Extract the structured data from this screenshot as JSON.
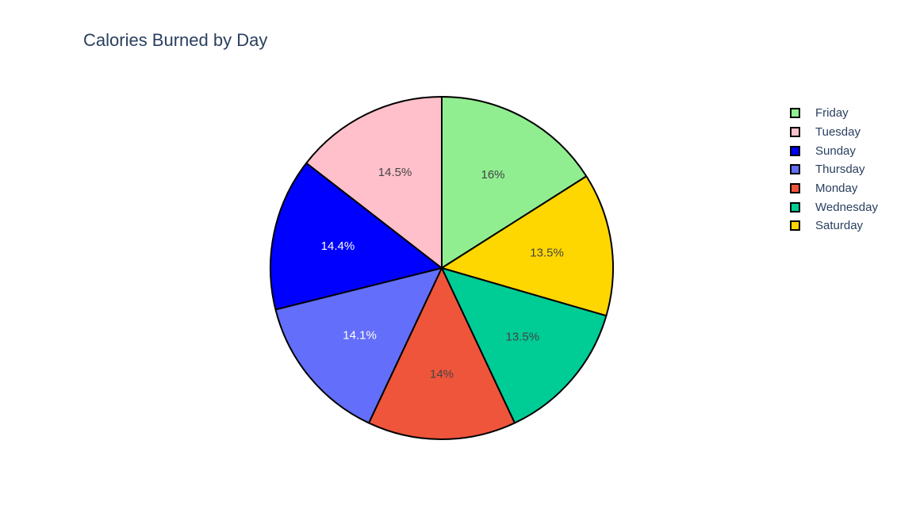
{
  "chart_data": {
    "type": "pie",
    "title": "Calories Burned by Day",
    "slice_border_color": "#000000",
    "slices": [
      {
        "label": "Friday",
        "value": 16.0,
        "text": "16%",
        "color": "#90ee90",
        "text_color": "#444444"
      },
      {
        "label": "Saturday",
        "value": 13.5,
        "text": "13.5%",
        "color": "#ffd700",
        "text_color": "#444444"
      },
      {
        "label": "Wednesday",
        "value": 13.5,
        "text": "13.5%",
        "color": "#00cc96",
        "text_color": "#444444"
      },
      {
        "label": "Monday",
        "value": 14.0,
        "text": "14%",
        "color": "#ef553b",
        "text_color": "#444444"
      },
      {
        "label": "Thursday",
        "value": 14.1,
        "text": "14.1%",
        "color": "#636efa",
        "text_color": "#ffffff"
      },
      {
        "label": "Sunday",
        "value": 14.4,
        "text": "14.4%",
        "color": "#0000ff",
        "text_color": "#ffffff"
      },
      {
        "label": "Tuesday",
        "value": 14.5,
        "text": "14.5%",
        "color": "#ffc0cb",
        "text_color": "#444444"
      }
    ],
    "legend": {
      "placement": "right",
      "entries": [
        {
          "label": "Friday",
          "color": "#90ee90"
        },
        {
          "label": "Tuesday",
          "color": "#ffc0cb"
        },
        {
          "label": "Sunday",
          "color": "#0000ff"
        },
        {
          "label": "Thursday",
          "color": "#636efa"
        },
        {
          "label": "Monday",
          "color": "#ef553b"
        },
        {
          "label": "Wednesday",
          "color": "#00cc96"
        },
        {
          "label": "Saturday",
          "color": "#ffd700"
        }
      ]
    }
  }
}
